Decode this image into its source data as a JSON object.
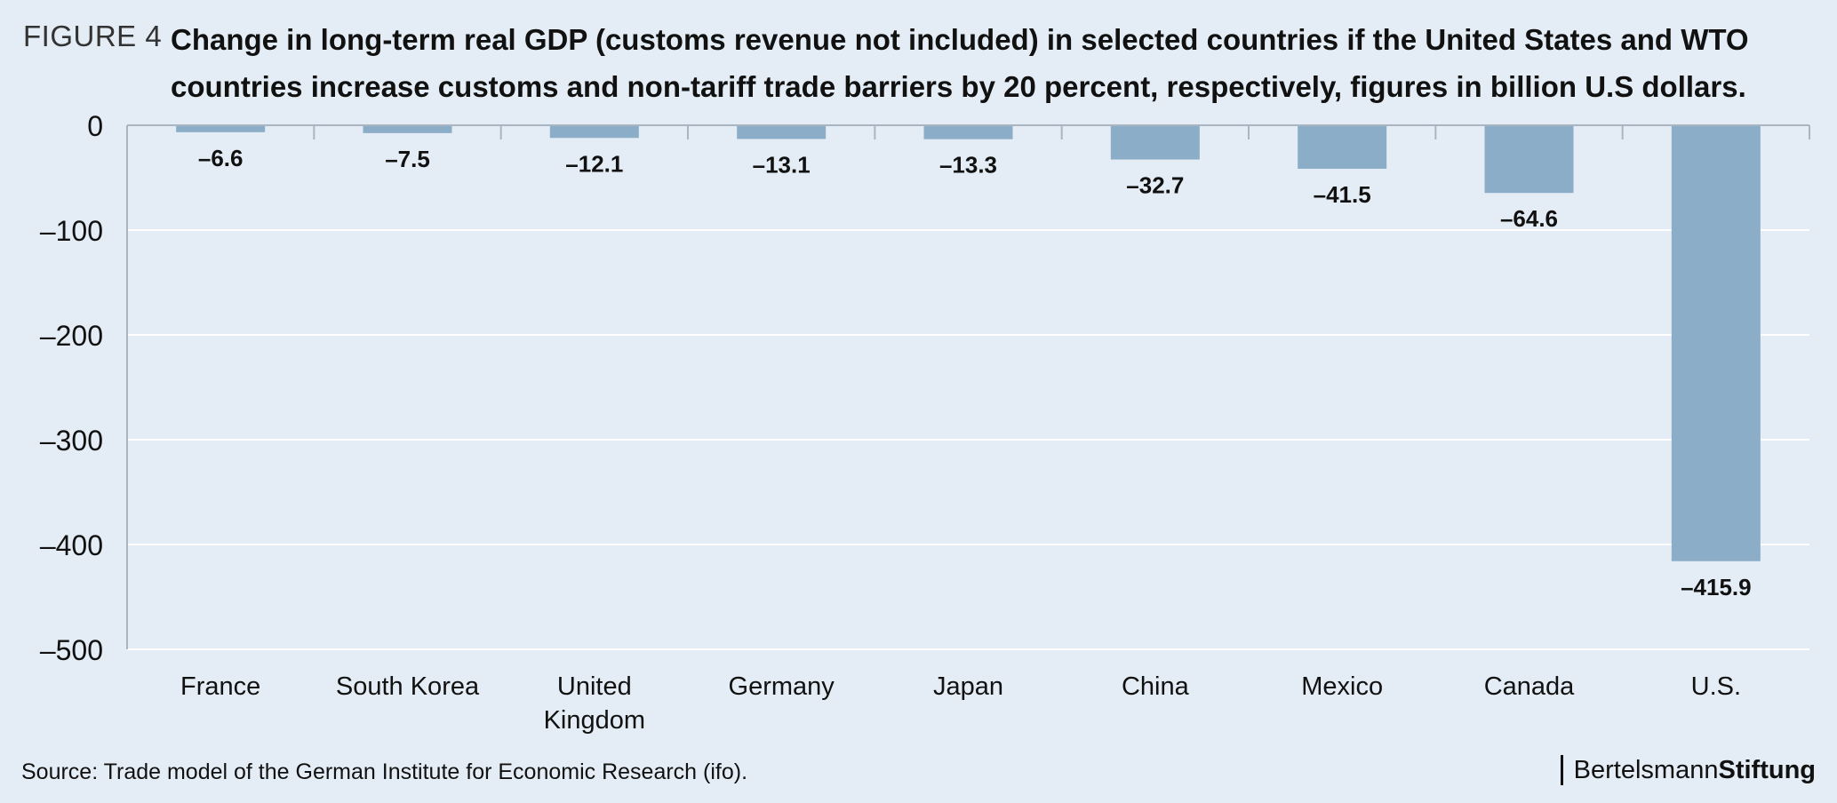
{
  "figure_label": "FIGURE 4",
  "chart_data": {
    "type": "bar",
    "title": "Change in long-term real GDP (customs revenue not included) in selected countries if the United States and WTO countries increase customs and non-tariff trade barriers by 20 percent, respectively, figures in billion U.S dollars.",
    "categories": [
      "France",
      "South Korea",
      "United Kingdom",
      "Germany",
      "Japan",
      "China",
      "Mexico",
      "Canada",
      "U.S."
    ],
    "category_lines": [
      [
        "France"
      ],
      [
        "South Korea"
      ],
      [
        "United",
        "Kingdom"
      ],
      [
        "Germany"
      ],
      [
        "Japan"
      ],
      [
        "China"
      ],
      [
        "Mexico"
      ],
      [
        "Canada"
      ],
      [
        "U.S."
      ]
    ],
    "values": [
      -6.6,
      -7.5,
      -12.1,
      -13.1,
      -13.3,
      -32.7,
      -41.5,
      -64.6,
      -415.9
    ],
    "value_labels": [
      "–6.6",
      "–7.5",
      "–12.1",
      "–13.1",
      "–13.3",
      "–32.7",
      "–41.5",
      "–64.6",
      "–415.9"
    ],
    "ylim": [
      -500,
      0
    ],
    "yticks": [
      0,
      -100,
      -200,
      -300,
      -400,
      -500
    ],
    "ytick_labels": [
      "0",
      "–100",
      "–200",
      "–300",
      "–400",
      "–500"
    ],
    "xlabel": "",
    "ylabel": "",
    "grid": true,
    "bar_color": "#8badc7",
    "grid_color": "#ffffff",
    "axis_color": "#a9b6c2"
  },
  "source": "Source: Trade model of the German Institute for Economic Research (ifo).",
  "brand": {
    "part1": "Bertelsmann",
    "part2": "Stiftung"
  }
}
